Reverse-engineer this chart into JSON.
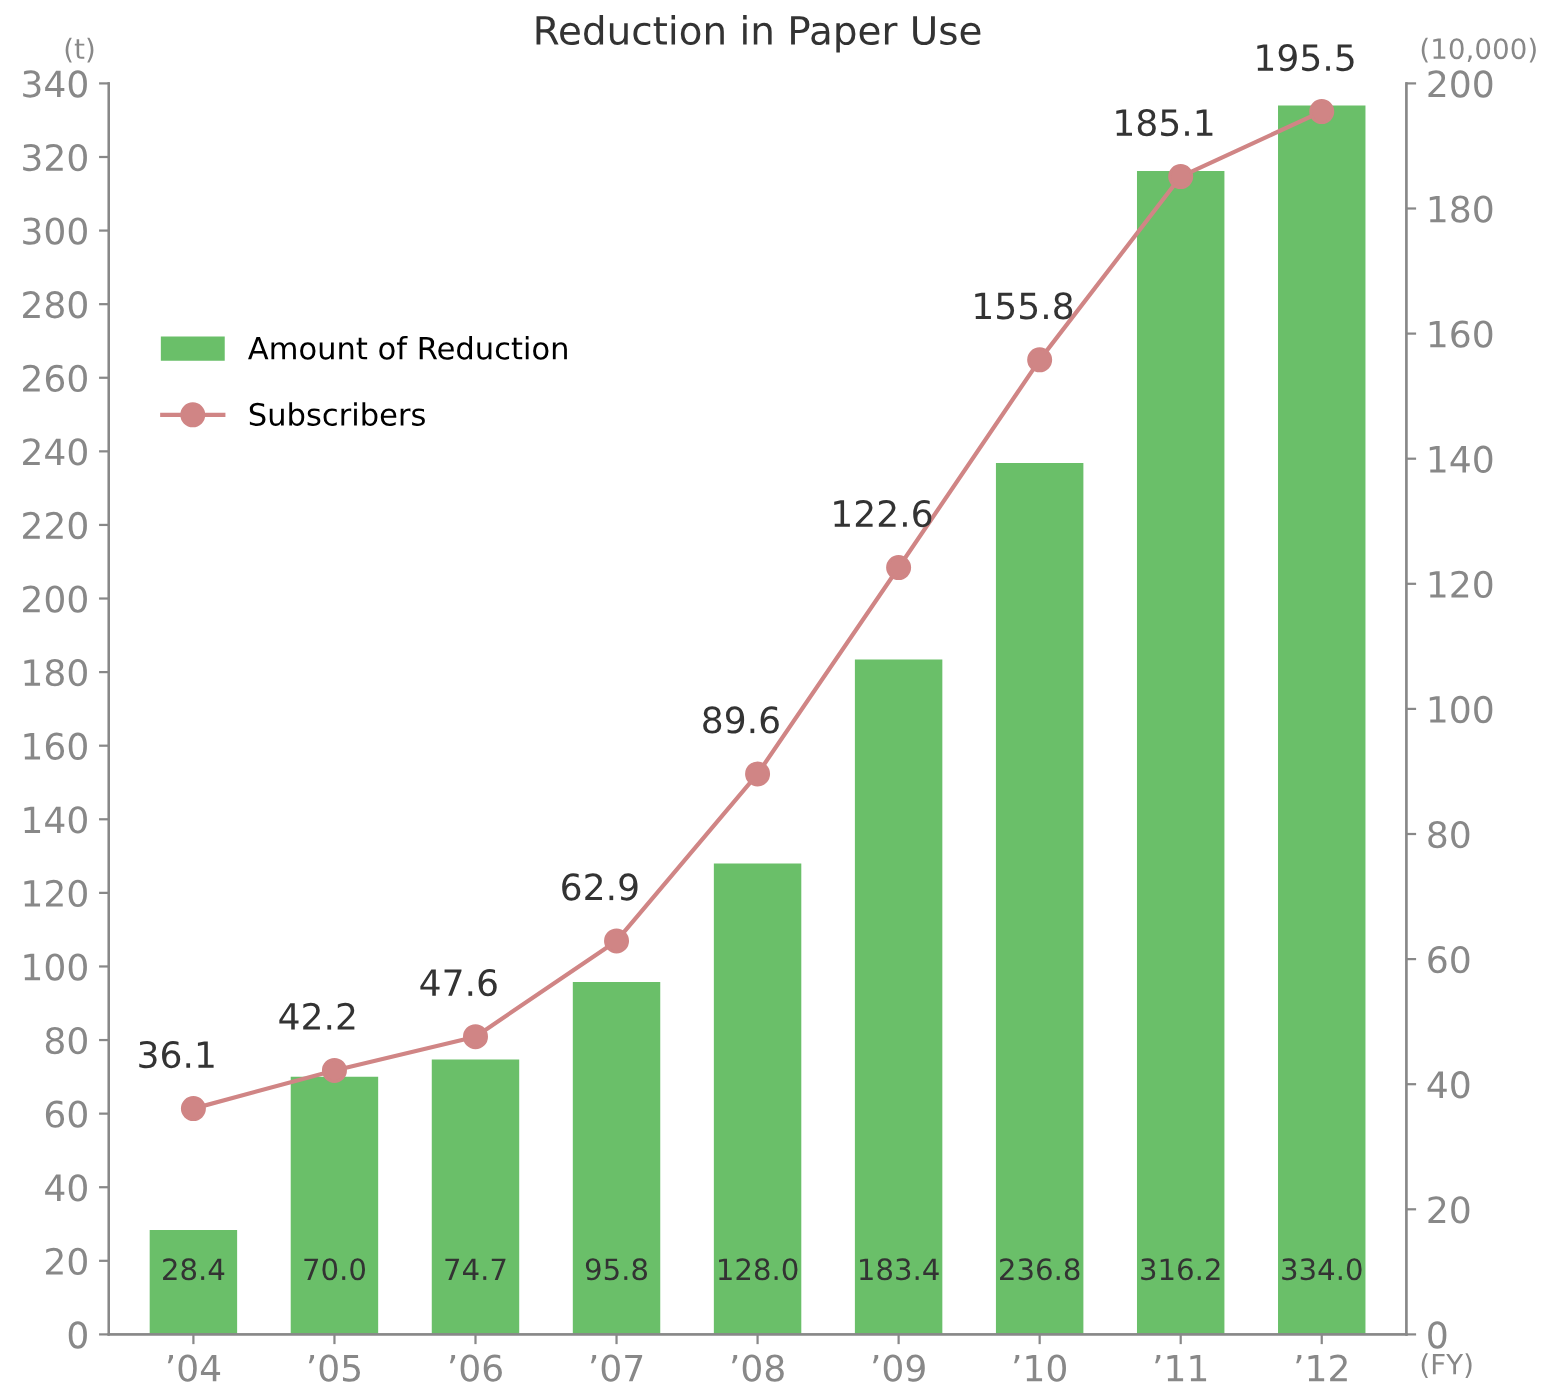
{
  "chart_data": {
    "type": "bar",
    "title": "Reduction in Paper Use",
    "ylabel": "(t)",
    "y2label": "(10,000)",
    "xlabel": "(FY)",
    "categories": [
      "’04",
      "’05",
      "’06",
      "’07",
      "’08",
      "’09",
      "’10",
      "’11",
      "’12"
    ],
    "series": [
      {
        "name": "Amount of Reduction",
        "color": "#6abf69",
        "values": [
          28.4,
          70.0,
          74.7,
          95.8,
          128.0,
          183.4,
          236.8,
          316.2,
          334.0
        ],
        "value_labels": [
          "28.4",
          "70.0",
          "74.7",
          "95.8",
          "128.0",
          "183.4",
          "236.8",
          "316.2",
          "334.0"
        ]
      },
      {
        "name": "Subscribers",
        "type": "line",
        "axis": "y2",
        "color": "#d08585",
        "marker": "circle",
        "values": [
          36.1,
          42.2,
          47.6,
          62.9,
          89.6,
          122.6,
          155.8,
          185.1,
          195.5
        ],
        "value_labels": [
          "36.1",
          "42.2",
          "47.6",
          "62.9",
          "89.6",
          "122.6",
          "155.8",
          "185.1",
          "195.5"
        ]
      }
    ],
    "ylim": [
      0,
      340
    ],
    "yticks": [
      0,
      20,
      40,
      60,
      80,
      100,
      120,
      140,
      160,
      180,
      200,
      220,
      240,
      260,
      280,
      300,
      320,
      340
    ],
    "y2lim": [
      0,
      200
    ],
    "y2ticks": [
      0,
      20,
      40,
      60,
      80,
      100,
      120,
      140,
      160,
      180,
      200
    ],
    "grid": false,
    "legend": "upper left"
  }
}
